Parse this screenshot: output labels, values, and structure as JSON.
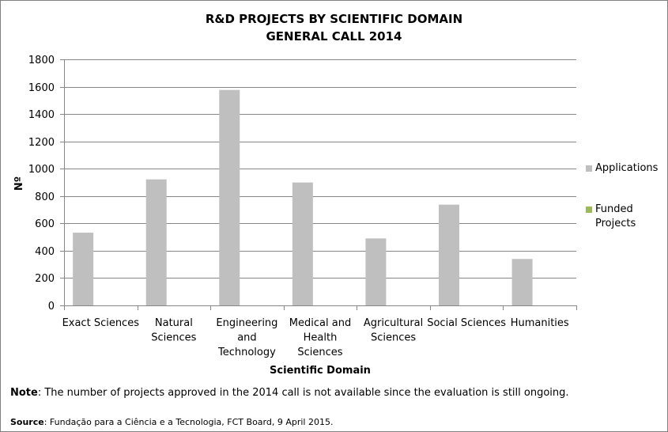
{
  "chart_data": {
    "type": "bar",
    "title": "R&D PROJECTS BY SCIENTIFIC DOMAIN",
    "subtitle": "GENERAL CALL 2014",
    "xlabel": "Scientific Domain",
    "ylabel": "Nº",
    "ylim": [
      0,
      1800
    ],
    "yticks": [
      "0",
      "200",
      "400",
      "600",
      "800",
      "1000",
      "1200",
      "1400",
      "1600",
      "1800"
    ],
    "categories": [
      [
        "Exact Sciences"
      ],
      [
        "Natural",
        "Sciences"
      ],
      [
        "Engineering",
        "and",
        "Technology"
      ],
      [
        "Medical and",
        "Health",
        "Sciences"
      ],
      [
        "Agricultural",
        "Sciences"
      ],
      [
        "Social Sciences"
      ],
      [
        "Humanities"
      ]
    ],
    "series": [
      {
        "name": "Applications",
        "color": "#bfbfbf",
        "values": [
          532,
          922,
          1576,
          899,
          490,
          737,
          340
        ]
      },
      {
        "name": "Funded Projects",
        "color": "#9bbb59",
        "values": [
          null,
          null,
          null,
          null,
          null,
          null,
          null
        ]
      }
    ],
    "legend_position": "right",
    "grid": true,
    "legend": {
      "applications": "Applications",
      "funded_line1": "Funded",
      "funded_line2": "Projects"
    }
  },
  "note": {
    "label": "Note",
    "text": ": The number of projects approved in the 2014 call is not available since the evaluation is still ongoing."
  },
  "source": {
    "label": "Source",
    "text": ": Fundação para a Ciência e a Tecnologia, FCT Board, 9 April 2015."
  }
}
